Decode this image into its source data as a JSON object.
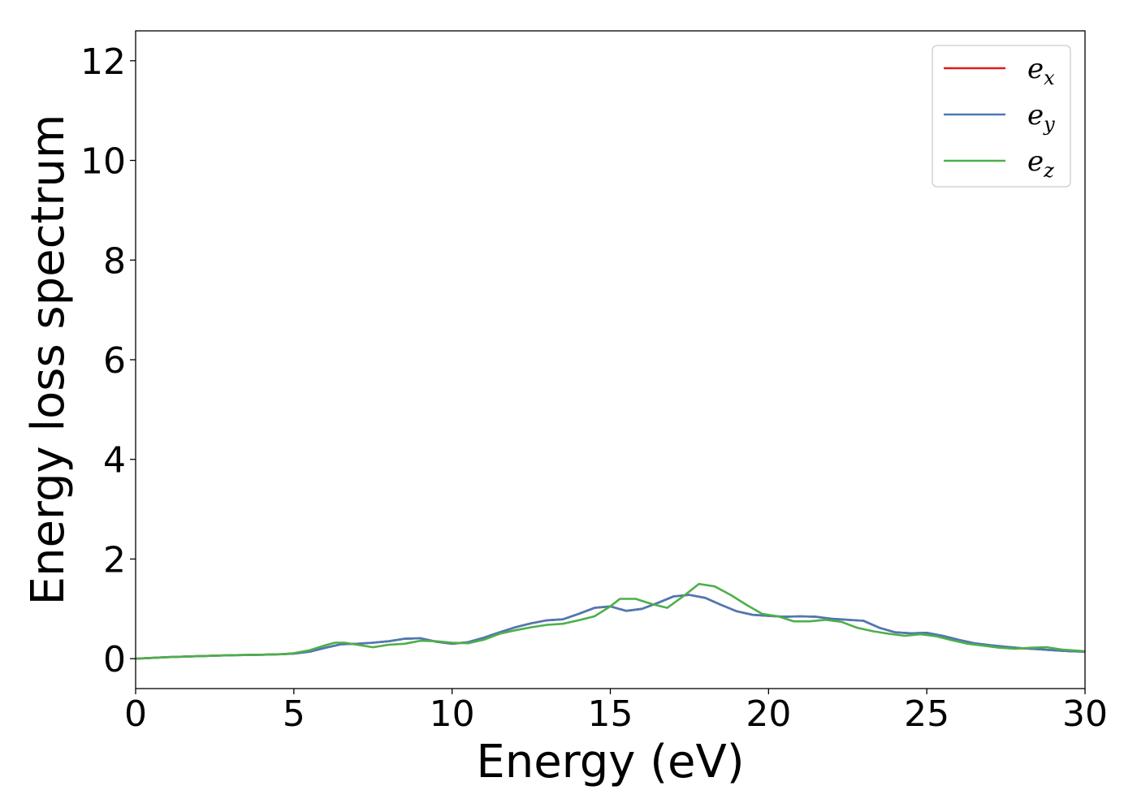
{
  "chart_data": {
    "type": "line",
    "title": "",
    "xlabel": "Energy (eV)",
    "ylabel": "Energy loss spectrum",
    "xlim": [
      0,
      30
    ],
    "ylim": [
      -0.6,
      12.6
    ],
    "xticks": [
      0,
      5,
      10,
      15,
      20,
      25,
      30
    ],
    "yticks": [
      0,
      2,
      4,
      6,
      8,
      10,
      12
    ],
    "grid": false,
    "legend_position": "top-right",
    "series": [
      {
        "name": "e_x",
        "legend_base": "e",
        "legend_sub": "x",
        "color": "#e41a1c",
        "x": [
          0,
          1,
          2,
          3,
          4,
          4.6,
          5,
          5.5,
          6,
          6.5,
          7,
          7.5,
          8,
          8.5,
          9,
          9.5,
          10,
          10.5,
          11,
          11.5,
          12,
          12.5,
          13,
          13.5,
          14,
          14.5,
          15,
          15.5,
          16,
          16.5,
          17,
          17.5,
          18,
          18.5,
          19,
          19.5,
          20,
          20.5,
          21,
          21.5,
          22,
          22.5,
          23,
          23.5,
          24,
          24.5,
          25,
          25.5,
          26,
          26.5,
          27,
          27.5,
          28,
          28.5,
          29,
          29.5,
          30
        ],
        "y": [
          0.0,
          0.03,
          0.05,
          0.07,
          0.08,
          0.09,
          0.1,
          0.14,
          0.22,
          0.29,
          0.3,
          0.32,
          0.35,
          0.4,
          0.41,
          0.34,
          0.3,
          0.33,
          0.42,
          0.53,
          0.63,
          0.71,
          0.77,
          0.79,
          0.9,
          1.02,
          1.05,
          0.96,
          1.0,
          1.12,
          1.25,
          1.28,
          1.22,
          1.08,
          0.95,
          0.88,
          0.86,
          0.84,
          0.85,
          0.84,
          0.8,
          0.78,
          0.76,
          0.62,
          0.53,
          0.51,
          0.52,
          0.46,
          0.38,
          0.31,
          0.27,
          0.24,
          0.21,
          0.19,
          0.17,
          0.15,
          0.14
        ]
      },
      {
        "name": "e_y",
        "legend_base": "e",
        "legend_sub": "y",
        "color": "#4a7ab5",
        "x": [
          0,
          1,
          2,
          3,
          4,
          4.6,
          5,
          5.5,
          6,
          6.5,
          7,
          7.5,
          8,
          8.5,
          9,
          9.5,
          10,
          10.5,
          11,
          11.5,
          12,
          12.5,
          13,
          13.5,
          14,
          14.5,
          15,
          15.5,
          16,
          16.5,
          17,
          17.5,
          18,
          18.5,
          19,
          19.5,
          20,
          20.5,
          21,
          21.5,
          22,
          22.5,
          23,
          23.5,
          24,
          24.5,
          25,
          25.5,
          26,
          26.5,
          27,
          27.5,
          28,
          28.5,
          29,
          29.5,
          30
        ],
        "y": [
          0.0,
          0.03,
          0.05,
          0.07,
          0.08,
          0.09,
          0.1,
          0.14,
          0.22,
          0.29,
          0.3,
          0.32,
          0.35,
          0.4,
          0.41,
          0.34,
          0.3,
          0.33,
          0.42,
          0.53,
          0.63,
          0.71,
          0.77,
          0.79,
          0.9,
          1.02,
          1.05,
          0.96,
          1.0,
          1.12,
          1.25,
          1.28,
          1.22,
          1.08,
          0.95,
          0.88,
          0.86,
          0.84,
          0.85,
          0.84,
          0.8,
          0.78,
          0.76,
          0.62,
          0.53,
          0.51,
          0.52,
          0.46,
          0.38,
          0.31,
          0.27,
          0.24,
          0.21,
          0.19,
          0.17,
          0.15,
          0.14
        ]
      },
      {
        "name": "e_z",
        "legend_base": "e",
        "legend_sub": "z",
        "color": "#4daf4a",
        "x": [
          0,
          1,
          2,
          3,
          4,
          4.6,
          5,
          5.5,
          6,
          6.3,
          6.6,
          7,
          7.5,
          8,
          8.5,
          9,
          9.5,
          10,
          10.5,
          11,
          11.5,
          12,
          12.5,
          13,
          13.5,
          14,
          14.5,
          15,
          15.3,
          15.8,
          16.3,
          16.8,
          17.3,
          17.8,
          18.3,
          18.8,
          19.3,
          19.8,
          20.3,
          20.8,
          21.3,
          21.8,
          22.3,
          22.8,
          23.3,
          23.8,
          24.3,
          24.8,
          25.3,
          25.8,
          26.3,
          26.8,
          27.3,
          27.8,
          28.3,
          28.8,
          29.3,
          30
        ],
        "y": [
          0.0,
          0.03,
          0.05,
          0.07,
          0.08,
          0.09,
          0.11,
          0.17,
          0.27,
          0.32,
          0.32,
          0.28,
          0.23,
          0.28,
          0.3,
          0.36,
          0.35,
          0.32,
          0.31,
          0.38,
          0.5,
          0.57,
          0.63,
          0.68,
          0.7,
          0.77,
          0.85,
          1.05,
          1.2,
          1.2,
          1.1,
          1.02,
          1.25,
          1.5,
          1.45,
          1.28,
          1.08,
          0.9,
          0.85,
          0.75,
          0.75,
          0.78,
          0.74,
          0.62,
          0.55,
          0.5,
          0.46,
          0.49,
          0.45,
          0.37,
          0.3,
          0.26,
          0.22,
          0.2,
          0.22,
          0.23,
          0.18,
          0.15
        ]
      }
    ]
  }
}
